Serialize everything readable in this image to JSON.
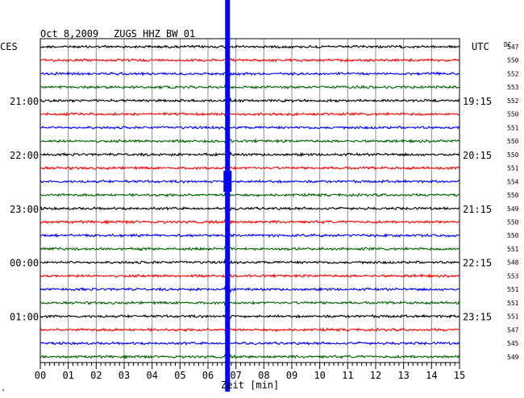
{
  "header": {
    "date": "Oct 8,2009",
    "station": "ZUGS HHZ BW 01",
    "left_zone": "CES",
    "right_zone": "UTC",
    "dc_label": "DC"
  },
  "chart_data": {
    "type": "line",
    "title": "",
    "xlabel": "Zeit [min]",
    "ylabel": "",
    "xlim": [
      0,
      15
    ],
    "x_ticks": [
      "00",
      "01",
      "02",
      "03",
      "04",
      "05",
      "06",
      "07",
      "08",
      "09",
      "10",
      "11",
      "12",
      "13",
      "14",
      "15"
    ],
    "grid": true,
    "trace_colors": [
      "#000000",
      "#ff0000",
      "#0000ff",
      "#006400"
    ],
    "trace_count": 24,
    "left_time_labels": [
      {
        "row": 4,
        "label": "21:00"
      },
      {
        "row": 8,
        "label": "22:00"
      },
      {
        "row": 12,
        "label": "23:00"
      },
      {
        "row": 16,
        "label": "00:00"
      },
      {
        "row": 20,
        "label": "01:00"
      }
    ],
    "right_time_labels": [
      {
        "row": 4,
        "label": "19:15"
      },
      {
        "row": 8,
        "label": "20:15"
      },
      {
        "row": 12,
        "label": "21:15"
      },
      {
        "row": 16,
        "label": "22:15"
      },
      {
        "row": 20,
        "label": "23:15"
      }
    ],
    "dc_offsets": [
      547,
      550,
      552,
      553,
      552,
      550,
      551,
      550,
      550,
      551,
      554,
      550,
      549,
      550,
      550,
      551,
      548,
      553,
      551,
      551,
      551,
      547,
      545,
      549
    ],
    "event": {
      "minute": 6.7,
      "color": "#0000ff"
    }
  }
}
